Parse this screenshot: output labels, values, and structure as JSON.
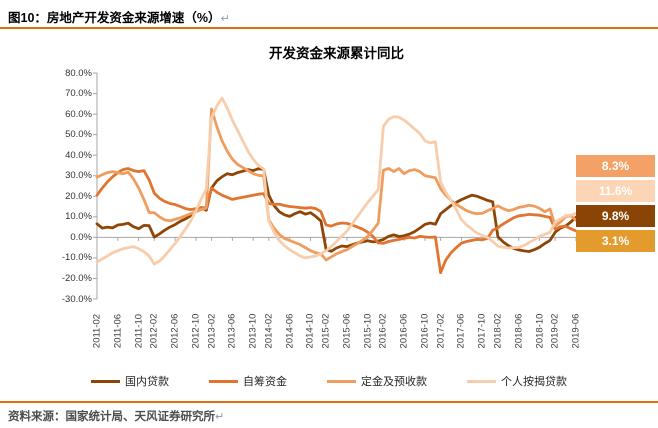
{
  "header": {
    "figure_title": "图10：房地产开发资金来源增速（%）",
    "return_mark": "↵"
  },
  "footer": {
    "source": "资料来源：国家统计局、天风证券研究所",
    "return_mark": "↵",
    "rule_color": "#E36C0A"
  },
  "chart_data": {
    "type": "line",
    "title": "开发资金来源累计同比",
    "grid": false,
    "legend_position": "bottom",
    "axis_color": "#A6A6A6",
    "y_axis": {
      "min": -30,
      "max": 80,
      "step": 10,
      "tick_labels": [
        "80.0%",
        "70.0%",
        "60.0%",
        "50.0%",
        "40.0%",
        "30.0%",
        "20.0%",
        "10.0%",
        "0.0%",
        "-10.0%",
        "-20.0%",
        "-30.0%"
      ]
    },
    "x_tick_labels": [
      "2011-02",
      "2011-06",
      "2011-10",
      "2012-02",
      "2012-06",
      "2012-10",
      "2013-02",
      "2013-06",
      "2013-10",
      "2014-02",
      "2014-06",
      "2014-10",
      "2015-02",
      "2015-06",
      "2015-10",
      "2016-02",
      "2016-06",
      "2016-10",
      "2017-02",
      "2017-06",
      "2017-10",
      "2018-02",
      "2018-06",
      "2018-10",
      "2019-02",
      "2019-06"
    ],
    "months": [
      "2011-02",
      "2011-03",
      "2011-04",
      "2011-05",
      "2011-06",
      "2011-07",
      "2011-08",
      "2011-09",
      "2011-10",
      "2011-11",
      "2011-12",
      "2012-02",
      "2012-03",
      "2012-04",
      "2012-05",
      "2012-06",
      "2012-07",
      "2012-08",
      "2012-09",
      "2012-10",
      "2012-11",
      "2012-12",
      "2013-02",
      "2013-03",
      "2013-04",
      "2013-05",
      "2013-06",
      "2013-07",
      "2013-08",
      "2013-09",
      "2013-10",
      "2013-11",
      "2013-12",
      "2014-02",
      "2014-03",
      "2014-04",
      "2014-05",
      "2014-06",
      "2014-07",
      "2014-08",
      "2014-09",
      "2014-10",
      "2014-11",
      "2014-12",
      "2015-02",
      "2015-03",
      "2015-04",
      "2015-05",
      "2015-06",
      "2015-07",
      "2015-08",
      "2015-09",
      "2015-10",
      "2015-11",
      "2015-12",
      "2016-02",
      "2016-03",
      "2016-04",
      "2016-05",
      "2016-06",
      "2016-07",
      "2016-08",
      "2016-09",
      "2016-10",
      "2016-11",
      "2016-12",
      "2017-02",
      "2017-03",
      "2017-04",
      "2017-05",
      "2017-06",
      "2017-07",
      "2017-08",
      "2017-09",
      "2017-10",
      "2017-11",
      "2017-12",
      "2018-02",
      "2018-03",
      "2018-04",
      "2018-05",
      "2018-06",
      "2018-07",
      "2018-08",
      "2018-09",
      "2018-10",
      "2018-11",
      "2018-12",
      "2019-02",
      "2019-03",
      "2019-04",
      "2019-05",
      "2019-06"
    ],
    "series": [
      {
        "name": "国内贷款",
        "color": "#8E4506",
        "values": [
          6.6,
          4.5,
          5.0,
          4.6,
          6.0,
          6.3,
          6.9,
          5.2,
          4.2,
          5.8,
          5.7,
          0.2,
          1.7,
          3.5,
          5.0,
          6.2,
          7.8,
          9.0,
          10.6,
          12.8,
          14.5,
          13.2,
          24.0,
          27.5,
          29.5,
          31.0,
          30.5,
          31.5,
          32.2,
          33.0,
          32.5,
          33.4,
          33.1,
          20.5,
          15.5,
          12.5,
          11.0,
          10.2,
          11.5,
          12.5,
          11.3,
          12.0,
          10.2,
          8.0,
          -5.9,
          -6.8,
          -5.2,
          -4.2,
          -4.5,
          -3.6,
          -2.8,
          -2.2,
          -1.6,
          -2.2,
          -1.8,
          -1.0,
          0.5,
          1.2,
          0.4,
          0.8,
          1.6,
          2.8,
          4.5,
          6.3,
          7.0,
          6.4,
          11.5,
          13.5,
          15.5,
          17.0,
          18.4,
          19.5,
          20.5,
          20.0,
          19.0,
          18.0,
          17.3,
          0.3,
          -2.2,
          -4.0,
          -5.3,
          -6.1,
          -6.6,
          -6.9,
          -6.0,
          -4.8,
          -3.0,
          -1.5,
          2.5,
          4.5,
          5.5,
          7.5,
          9.8
        ]
      },
      {
        "name": "自筹资金",
        "color": "#E1752F",
        "values": [
          20.5,
          24.0,
          27.0,
          29.5,
          31.5,
          33.0,
          33.5,
          32.5,
          32.0,
          32.5,
          28.0,
          21.5,
          19.0,
          17.5,
          16.5,
          16.0,
          15.0,
          14.0,
          13.5,
          14.0,
          14.5,
          14.5,
          24.0,
          22.0,
          20.5,
          19.5,
          18.5,
          19.0,
          19.5,
          20.0,
          20.5,
          21.0,
          21.3,
          16.5,
          16.0,
          16.2,
          15.5,
          15.0,
          14.8,
          14.5,
          14.2,
          14.5,
          14.0,
          12.5,
          6.0,
          5.5,
          6.5,
          7.0,
          6.8,
          6.0,
          5.0,
          4.0,
          2.5,
          0.5,
          -2.7,
          -2.9,
          -2.0,
          -1.5,
          -1.0,
          -0.5,
          0.0,
          -0.3,
          0.5,
          0.2,
          0.0,
          0.2,
          -17.2,
          -11.0,
          -7.5,
          -5.0,
          -2.8,
          -2.0,
          -1.5,
          -1.0,
          -1.2,
          -0.5,
          3.5,
          4.7,
          6.5,
          8.0,
          9.5,
          10.5,
          10.8,
          11.2,
          11.0,
          10.8,
          10.2,
          9.7,
          4.0,
          5.2,
          5.5,
          4.2,
          3.1
        ]
      },
      {
        "name": "定金及预收款",
        "color": "#EF9D5F",
        "values": [
          29.3,
          30.5,
          31.5,
          32.0,
          31.5,
          31.0,
          31.7,
          28.5,
          24.0,
          18.5,
          12.1,
          12.0,
          10.0,
          8.5,
          8.0,
          8.8,
          9.5,
          10.5,
          11.5,
          12.5,
          13.5,
          14.2,
          62.5,
          54.0,
          47.0,
          42.0,
          38.0,
          35.5,
          34.0,
          32.5,
          31.0,
          30.2,
          29.9,
          8.5,
          4.5,
          1.5,
          -0.5,
          -1.5,
          -2.5,
          -3.5,
          -5.0,
          -6.5,
          -7.5,
          -8.1,
          -11.0,
          -9.5,
          -8.0,
          -7.0,
          -6.0,
          -4.5,
          -3.0,
          -1.5,
          0.5,
          3.5,
          6.9,
          32.7,
          33.5,
          32.0,
          33.5,
          31.0,
          32.5,
          33.0,
          32.0,
          30.0,
          29.5,
          29.0,
          23.7,
          20.5,
          18.0,
          16.0,
          14.5,
          13.0,
          12.0,
          11.5,
          11.7,
          13.0,
          14.0,
          15.3,
          14.0,
          13.0,
          13.5,
          14.6,
          15.0,
          15.6,
          15.2,
          14.1,
          12.5,
          13.8,
          5.6,
          7.5,
          10.0,
          10.5,
          8.3
        ]
      },
      {
        "name": "个人按揭贷款",
        "color": "#F8CDAB",
        "values": [
          -12.0,
          -10.5,
          -9.0,
          -7.5,
          -6.5,
          -5.5,
          -5.0,
          -4.5,
          -5.5,
          -7.0,
          -9.0,
          -13.0,
          -11.5,
          -9.0,
          -6.0,
          -3.0,
          0.5,
          4.0,
          8.0,
          13.0,
          18.5,
          23.6,
          58.0,
          64.0,
          67.8,
          63.0,
          57.0,
          52.0,
          47.0,
          42.0,
          38.0,
          35.0,
          33.3,
          8.0,
          2.5,
          -1.5,
          -4.0,
          -6.0,
          -7.5,
          -9.0,
          -10.0,
          -9.5,
          -9.0,
          -8.0,
          -6.5,
          -4.5,
          -2.0,
          0.5,
          3.0,
          6.5,
          10.0,
          13.5,
          17.0,
          20.0,
          23.2,
          54.0,
          57.5,
          58.8,
          58.5,
          57.0,
          55.0,
          52.8,
          50.5,
          47.0,
          46.0,
          46.5,
          26.9,
          22.0,
          18.0,
          13.5,
          8.6,
          6.0,
          4.0,
          2.0,
          1.0,
          0.0,
          -2.0,
          -4.3,
          -4.8,
          -5.2,
          -5.0,
          -4.9,
          -4.0,
          -2.5,
          -1.2,
          0.5,
          1.5,
          2.5,
          7.5,
          9.0,
          10.5,
          10.8,
          11.6
        ]
      }
    ],
    "end_callouts": [
      {
        "label": "8.3%",
        "series": "定金及预收款",
        "bg": "#F4A167"
      },
      {
        "label": "11.6%",
        "series": "个人按揭贷款",
        "bg": "#FBD5B5"
      },
      {
        "label": "9.8%",
        "series": "国内贷款",
        "bg": "#8A4506"
      },
      {
        "label": "3.1%",
        "series": "自筹资金",
        "bg": "#E39B2D"
      }
    ]
  }
}
